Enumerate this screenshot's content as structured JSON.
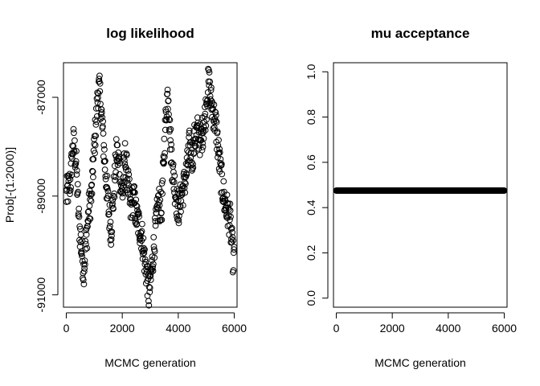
{
  "chart_data": [
    {
      "type": "scatter",
      "title": "log likelihood",
      "xlabel": "MCMC generation",
      "ylabel": "Prob[-(1:2000)]",
      "xlim": [
        -100,
        6100
      ],
      "ylim": [
        -91250,
        -86300
      ],
      "xticks": [
        0,
        2000,
        4000,
        6000
      ],
      "xtick_labels": [
        "0",
        "2000",
        "4000",
        "6000"
      ],
      "yticks": [
        -91000,
        -89000,
        -87000
      ],
      "ytick_labels": [
        "-91000",
        "-89000",
        "-87000"
      ],
      "legend": "none",
      "grid": false,
      "x_step": 10,
      "trace_anchors": [
        [
          0,
          -89000
        ],
        [
          150,
          -88700
        ],
        [
          250,
          -87900
        ],
        [
          350,
          -88300
        ],
        [
          450,
          -89500
        ],
        [
          550,
          -90100
        ],
        [
          620,
          -90500
        ],
        [
          700,
          -90000
        ],
        [
          800,
          -89300
        ],
        [
          900,
          -89000
        ],
        [
          1000,
          -88000
        ],
        [
          1100,
          -87200
        ],
        [
          1150,
          -86800
        ],
        [
          1220,
          -87000
        ],
        [
          1300,
          -87700
        ],
        [
          1400,
          -88500
        ],
        [
          1500,
          -89200
        ],
        [
          1600,
          -89700
        ],
        [
          1700,
          -88900
        ],
        [
          1800,
          -88100
        ],
        [
          1900,
          -88400
        ],
        [
          2000,
          -89000
        ],
        [
          2100,
          -88200
        ],
        [
          2200,
          -88700
        ],
        [
          2300,
          -89300
        ],
        [
          2400,
          -89000
        ],
        [
          2500,
          -89400
        ],
        [
          2600,
          -89600
        ],
        [
          2700,
          -89800
        ],
        [
          2800,
          -90300
        ],
        [
          2900,
          -90700
        ],
        [
          2950,
          -91000
        ],
        [
          3000,
          -90800
        ],
        [
          3100,
          -90200
        ],
        [
          3200,
          -89600
        ],
        [
          3300,
          -89100
        ],
        [
          3400,
          -89300
        ],
        [
          3500,
          -88000
        ],
        [
          3600,
          -87000
        ],
        [
          3650,
          -86900
        ],
        [
          3700,
          -87700
        ],
        [
          3800,
          -88500
        ],
        [
          3900,
          -88900
        ],
        [
          4000,
          -89300
        ],
        [
          4100,
          -89000
        ],
        [
          4200,
          -88800
        ],
        [
          4300,
          -88500
        ],
        [
          4400,
          -88000
        ],
        [
          4500,
          -88200
        ],
        [
          4600,
          -87800
        ],
        [
          4700,
          -87700
        ],
        [
          4800,
          -87900
        ],
        [
          4900,
          -87600
        ],
        [
          5000,
          -87200
        ],
        [
          5050,
          -86800
        ],
        [
          5100,
          -86700
        ],
        [
          5150,
          -87000
        ],
        [
          5250,
          -87300
        ],
        [
          5350,
          -87600
        ],
        [
          5450,
          -88200
        ],
        [
          5550,
          -88700
        ],
        [
          5650,
          -89100
        ],
        [
          5750,
          -89300
        ],
        [
          5850,
          -89500
        ],
        [
          5950,
          -90200
        ],
        [
          6000,
          -90300
        ]
      ]
    },
    {
      "type": "scatter",
      "title": "mu acceptance",
      "xlabel": "MCMC generation",
      "ylabel": "",
      "xlim": [
        -100,
        6100
      ],
      "ylim": [
        -0.04,
        1.04
      ],
      "xticks": [
        0,
        2000,
        4000,
        6000
      ],
      "xtick_labels": [
        "0",
        "2000",
        "4000",
        "6000"
      ],
      "yticks": [
        0.0,
        0.2,
        0.4,
        0.6,
        0.8,
        1.0
      ],
      "ytick_labels": [
        "0.0",
        "0.2",
        "0.4",
        "0.6",
        "0.8",
        "1.0"
      ],
      "legend": "none",
      "grid": false,
      "x_step": 10,
      "series": [
        {
          "x_start": 0,
          "x_end": 6000,
          "y": 0.475
        }
      ]
    }
  ]
}
